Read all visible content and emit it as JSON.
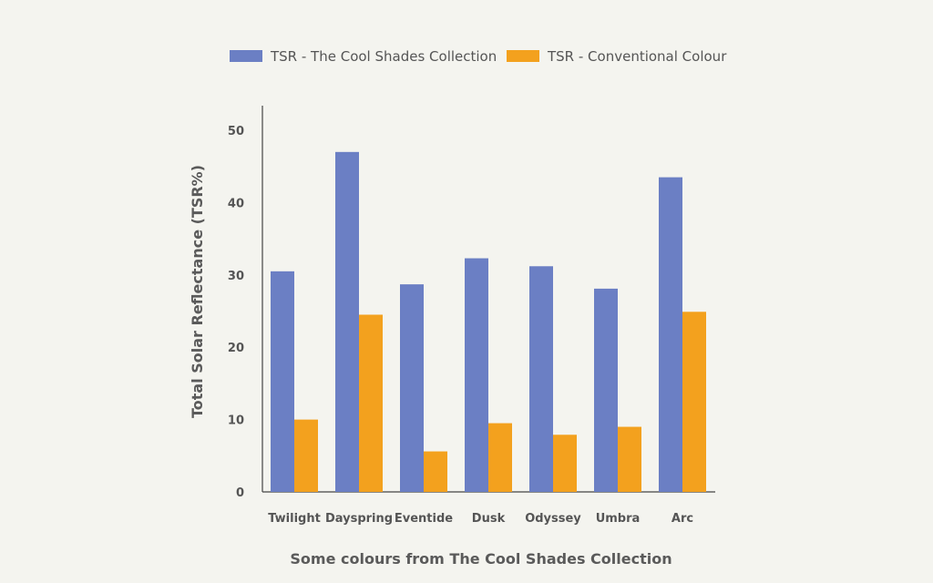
{
  "chart_data": {
    "type": "bar",
    "title": "",
    "xlabel": "Some colours from The Cool Shades Collection",
    "ylabel": "Total Solar Reflectance (TSR%)",
    "categories": [
      "Twilight",
      "Dayspring",
      "Eventide",
      "Dusk",
      "Odyssey",
      "Umbra",
      "Arc"
    ],
    "series": [
      {
        "name": "TSR - The Cool Shades Collection",
        "color": "#6b7fc4",
        "values": [
          30.5,
          47,
          28.7,
          32.3,
          31.2,
          28.1,
          43.5
        ]
      },
      {
        "name": "TSR - Conventional Colour",
        "color": "#f3a11e",
        "values": [
          10,
          24.5,
          5.6,
          9.5,
          7.9,
          9,
          24.9
        ]
      }
    ],
    "ylim": [
      0,
      50
    ],
    "yticks": [
      0,
      10,
      20,
      30,
      40,
      50
    ],
    "grid": false,
    "legend_position": "top-center"
  }
}
